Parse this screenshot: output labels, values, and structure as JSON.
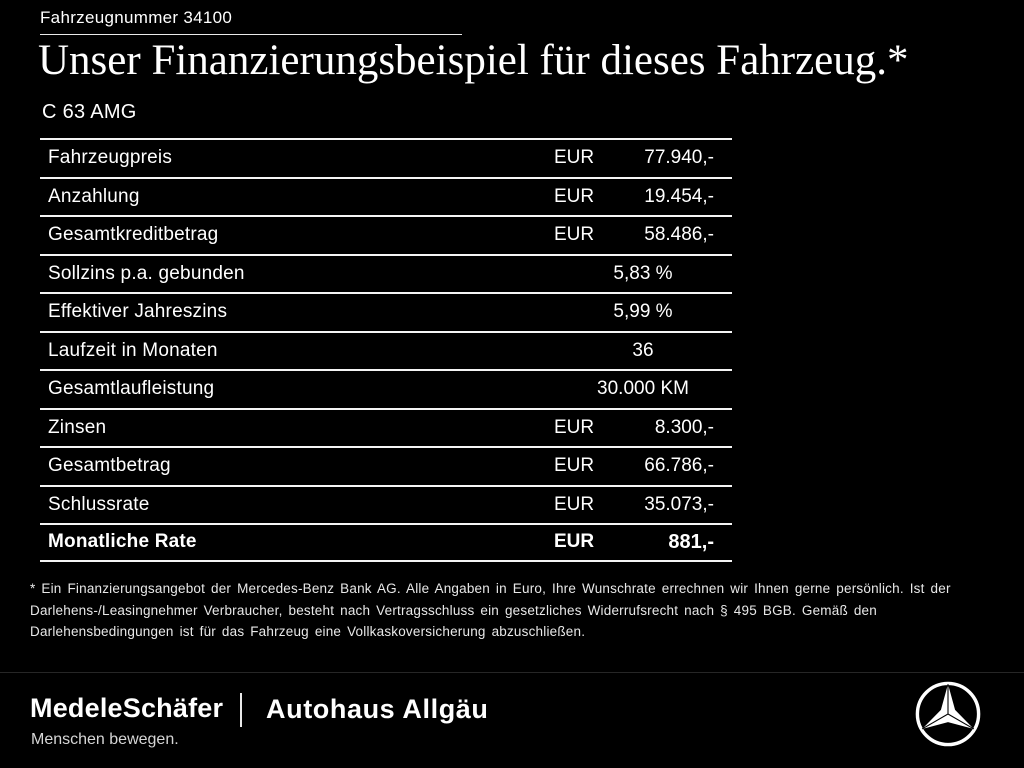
{
  "header": {
    "vehicle_number": "Fahrzeugnummer 34100",
    "title": "Unser Finanzierungsbeispiel für dieses Fahrzeug.*",
    "subtitle": "C 63 AMG"
  },
  "table": {
    "rows": [
      {
        "label": "Fahrzeugpreis",
        "currency": "EUR",
        "value": "77.940,-",
        "bold": false
      },
      {
        "label": "Anzahlung",
        "currency": "EUR",
        "value": "19.454,-",
        "bold": false
      },
      {
        "label": "Gesamtkreditbetrag",
        "currency": "EUR",
        "value": "58.486,-",
        "bold": false
      },
      {
        "label": "Sollzins p.a. gebunden",
        "currency": "",
        "value": "5,83 %",
        "bold": false
      },
      {
        "label": "Effektiver Jahreszins",
        "currency": "",
        "value": "5,99 %",
        "bold": false
      },
      {
        "label": "Laufzeit in Monaten",
        "currency": "",
        "value": "36",
        "bold": false
      },
      {
        "label": "Gesamtlaufleistung",
        "currency": "",
        "value": "30.000 KM",
        "bold": false
      },
      {
        "label": "Zinsen",
        "currency": "EUR",
        "value": "8.300,-",
        "bold": false
      },
      {
        "label": "Gesamtbetrag",
        "currency": "EUR",
        "value": "66.786,-",
        "bold": false
      },
      {
        "label": "Schlussrate",
        "currency": "EUR",
        "value": "35.073,-",
        "bold": false
      },
      {
        "label": "Monatliche Rate",
        "currency": "EUR",
        "value": "881,-",
        "bold": true
      }
    ]
  },
  "footnote": "* Ein Finanzierungsangebot der Mercedes-Benz Bank AG. Alle Angaben in Euro, Ihre Wunschrate errechnen wir Ihnen gerne persönlich. Ist der Darlehens-/Leasingnehmer Verbraucher, besteht nach Vertragsschluss ein gesetzliches Widerrufsrecht nach § 495 BGB. Gemäß den Darlehensbedingungen ist für das Fahrzeug eine Vollkaskoversicherung abzuschließen.",
  "footer": {
    "dealer1": "MedeleSchäfer",
    "tagline": "Menschen bewegen.",
    "dealer2": "Autohaus Allgäu",
    "brand_icon": "mercedes-star-icon"
  },
  "colors": {
    "background": "#000000",
    "text": "#ffffff",
    "rule_lines": "#f4f4f4"
  }
}
